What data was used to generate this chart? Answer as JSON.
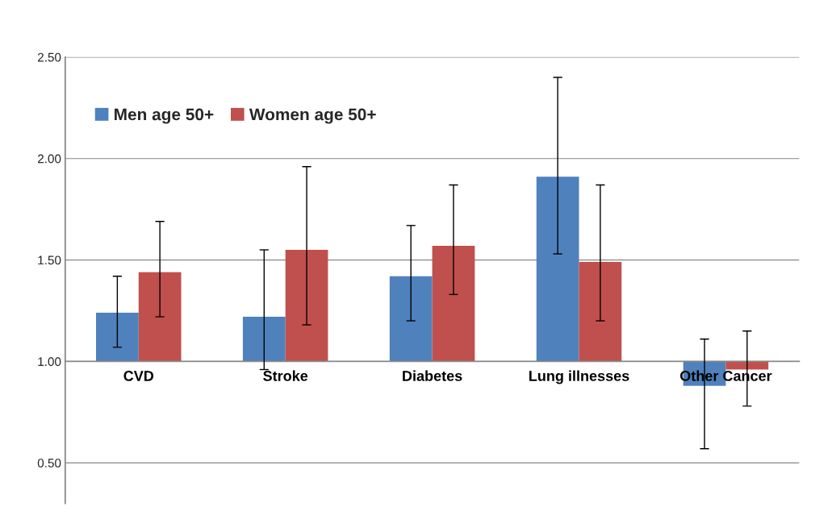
{
  "chart_data": {
    "type": "bar",
    "categories": [
      "CVD",
      "Stroke",
      "Diabetes",
      "Lung illnesses",
      "Other Cancer"
    ],
    "series": [
      {
        "name": "Men age 50+",
        "color": "#4f81bd",
        "base": [
          1,
          1,
          1,
          1,
          1
        ],
        "values": [
          0.24,
          0.22,
          0.42,
          0.91,
          -0.12
        ],
        "errors": [
          [
            1.07,
            1.42
          ],
          [
            0.96,
            1.55
          ],
          [
            1.2,
            1.67
          ],
          [
            1.53,
            2.4
          ],
          [
            0.57,
            1.11
          ]
        ]
      },
      {
        "name": "Women age 50+",
        "color": "#c0504d",
        "base": [
          1,
          1,
          1,
          1,
          1
        ],
        "values": [
          0.44,
          0.55,
          0.57,
          0.49,
          -0.04
        ],
        "errors": [
          [
            1.22,
            1.69
          ],
          [
            1.18,
            1.96
          ],
          [
            1.33,
            1.87
          ],
          [
            1.2,
            1.87
          ],
          [
            0.78,
            1.15
          ]
        ]
      }
    ],
    "ylim": [
      0.3,
      2.5
    ],
    "yticks": [
      {
        "value": 0.5,
        "label": "0.50"
      },
      {
        "value": 1.0,
        "label": "1.00"
      },
      {
        "value": 1.5,
        "label": "1.50"
      },
      {
        "value": 2.0,
        "label": "2.00"
      },
      {
        "value": 2.5,
        "label": "2.50"
      }
    ],
    "grid": "y",
    "legend": "top left"
  }
}
